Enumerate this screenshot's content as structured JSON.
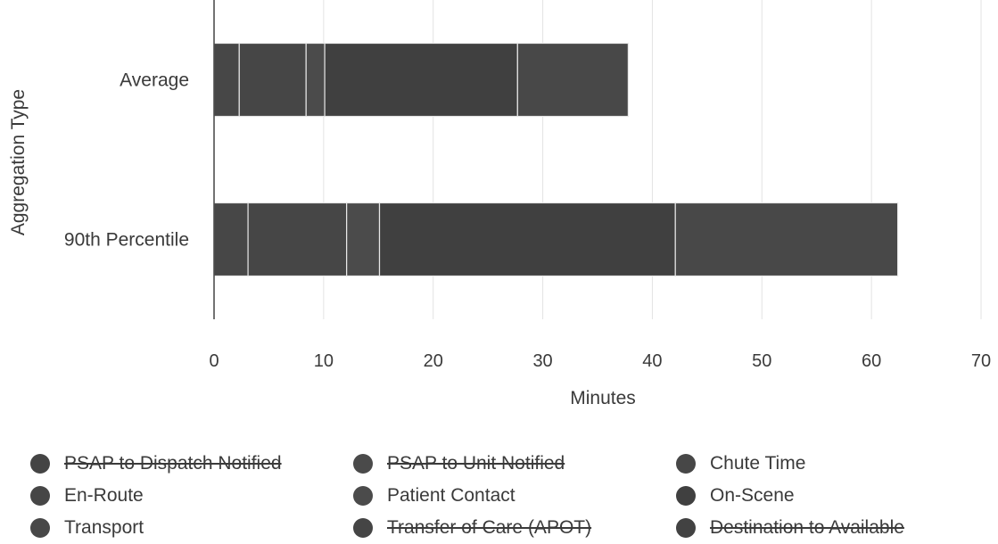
{
  "chart_data": {
    "type": "bar",
    "orientation": "horizontal",
    "stacked": true,
    "categories": [
      "Average",
      "90th Percentile"
    ],
    "xlabel": "Minutes",
    "ylabel": "Aggregation Type",
    "xlim": [
      0,
      70
    ],
    "x_ticks": [
      0,
      10,
      20,
      30,
      40,
      50,
      60,
      70
    ],
    "grid": "vertical",
    "legend_position": "bottom",
    "series": [
      {
        "name": "PSAP to Dispatch Notified",
        "values": [
          0,
          0
        ],
        "color": "#444444",
        "visible": false
      },
      {
        "name": "PSAP to Unit Notified",
        "values": [
          0,
          0
        ],
        "color": "#4a4a4a",
        "visible": false
      },
      {
        "name": "Chute Time",
        "values": [
          2.3,
          3.1
        ],
        "color": "#474747",
        "visible": true
      },
      {
        "name": "En-Route",
        "values": [
          6.1,
          9.0
        ],
        "color": "#464646",
        "visible": true
      },
      {
        "name": "Patient Contact",
        "values": [
          1.7,
          3.0
        ],
        "color": "#4b4b4b",
        "visible": true
      },
      {
        "name": "On-Scene",
        "values": [
          17.6,
          27.0
        ],
        "color": "#404040",
        "visible": true
      },
      {
        "name": "Transport",
        "values": [
          10.1,
          20.3
        ],
        "color": "#484848",
        "visible": true
      },
      {
        "name": "Transfer of Care (APOT)",
        "values": [
          0,
          0
        ],
        "color": "#454545",
        "visible": false
      },
      {
        "name": "Destination to Available",
        "values": [
          0,
          0
        ],
        "color": "#424242",
        "visible": false
      }
    ]
  }
}
